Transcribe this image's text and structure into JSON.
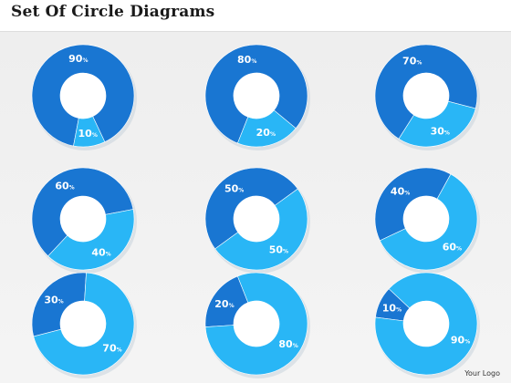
{
  "title": "Set Of Circle Diagrams",
  "logo": "Your Logo",
  "colors": {
    "dark": "#1976d2",
    "light": "#29b6f6",
    "darker": "#136cc4",
    "shadow": "#c8d3dc"
  },
  "chart_data": [
    {
      "type": "pie",
      "values": [
        90,
        10
      ],
      "labels": [
        "90%",
        "10%"
      ]
    },
    {
      "type": "pie",
      "values": [
        80,
        20
      ],
      "labels": [
        "80%",
        "20%"
      ]
    },
    {
      "type": "pie",
      "values": [
        70,
        30
      ],
      "labels": [
        "70%",
        "30%"
      ]
    },
    {
      "type": "pie",
      "values": [
        60,
        40
      ],
      "labels": [
        "60%",
        "40%"
      ]
    },
    {
      "type": "pie",
      "values": [
        50,
        50
      ],
      "labels": [
        "50%",
        "50%"
      ]
    },
    {
      "type": "pie",
      "values": [
        40,
        60
      ],
      "labels": [
        "40%",
        "60%"
      ]
    },
    {
      "type": "pie",
      "values": [
        30,
        70
      ],
      "labels": [
        "30%",
        "70%"
      ]
    },
    {
      "type": "pie",
      "values": [
        20,
        80
      ],
      "labels": [
        "20%",
        "80%"
      ]
    },
    {
      "type": "pie",
      "values": [
        10,
        90
      ],
      "labels": [
        "10%",
        "90%"
      ]
    }
  ]
}
